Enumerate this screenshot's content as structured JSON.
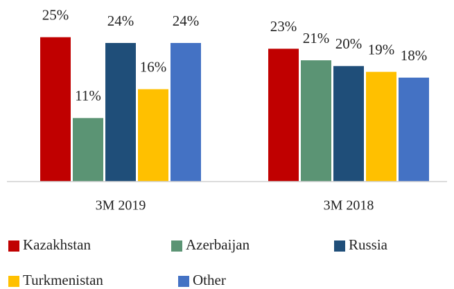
{
  "chart_data": {
    "type": "bar",
    "categories": [
      "3M 2019",
      "3M 2018"
    ],
    "series": [
      {
        "name": "Kazakhstan",
        "color": "#c00000",
        "values": [
          25,
          23
        ],
        "value_labels": [
          "25%",
          "23%"
        ]
      },
      {
        "name": "Azerbaijan",
        "color": "#5b9474",
        "values": [
          11,
          21
        ],
        "value_labels": [
          "11%",
          "21%"
        ]
      },
      {
        "name": "Russia",
        "color": "#1f4e79",
        "values": [
          24,
          20
        ],
        "value_labels": [
          "24%",
          "20%"
        ]
      },
      {
        "name": "Turkmenistan",
        "color": "#ffc000",
        "values": [
          16,
          19
        ],
        "value_labels": [
          "16%",
          "19%"
        ]
      },
      {
        "name": "Other",
        "color": "#4472c4",
        "values": [
          24,
          18
        ],
        "value_labels": [
          "24%",
          "18%"
        ]
      }
    ],
    "ylim": [
      0,
      30
    ],
    "legend": "bottom"
  }
}
